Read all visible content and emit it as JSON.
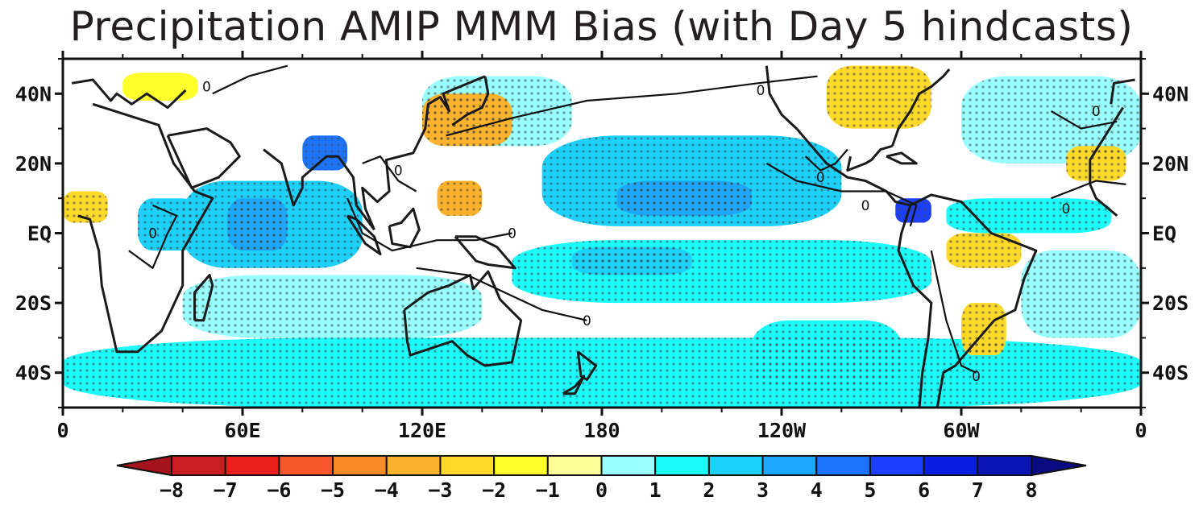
{
  "title": "Precipitation AMIP MMM Bias (with Day 5 hindcasts)",
  "map": {
    "projection": "cylindrical equidistant",
    "lon_range": [
      0,
      360
    ],
    "lat_range": [
      -50,
      50
    ],
    "x_ticks": [
      {
        "lon": 0,
        "label": "0"
      },
      {
        "lon": 60,
        "label": "60E"
      },
      {
        "lon": 120,
        "label": "120E"
      },
      {
        "lon": 180,
        "label": "180"
      },
      {
        "lon": 240,
        "label": "120W"
      },
      {
        "lon": 300,
        "label": "60W"
      },
      {
        "lon": 360,
        "label": "0"
      }
    ],
    "y_ticks": [
      {
        "lat": 40,
        "label": "40N"
      },
      {
        "lat": 20,
        "label": "20N"
      },
      {
        "lat": 0,
        "label": "EQ"
      },
      {
        "lat": -20,
        "label": "20S"
      },
      {
        "lat": -40,
        "label": "40S"
      }
    ],
    "contour_level": "0",
    "stippling": "significant bias",
    "bias_regions": [
      {
        "name": "central-pacific-itcz",
        "lon": [
          160,
          260
        ],
        "lat": [
          2,
          28
        ],
        "level": 3
      },
      {
        "name": "central-pacific-core",
        "lon": [
          185,
          230
        ],
        "lat": [
          5,
          15
        ],
        "level": 4
      },
      {
        "name": "south-pacific-band",
        "lon": [
          150,
          290
        ],
        "lat": [
          -20,
          -2
        ],
        "level": 2
      },
      {
        "name": "south-pacific-core",
        "lon": [
          170,
          210
        ],
        "lat": [
          -12,
          -4
        ],
        "level": 3
      },
      {
        "name": "indian-ocean-west",
        "lon": [
          40,
          100
        ],
        "lat": [
          -10,
          15
        ],
        "level": 3
      },
      {
        "name": "arabian-sea-core",
        "lon": [
          55,
          75
        ],
        "lat": [
          -5,
          10
        ],
        "level": 4
      },
      {
        "name": "southern-ocean-band",
        "lon": [
          0,
          360
        ],
        "lat": [
          -50,
          -30
        ],
        "level": 2
      },
      {
        "name": "south-indian-ocean",
        "lon": [
          40,
          140
        ],
        "lat": [
          -30,
          -12
        ],
        "level": 1
      },
      {
        "name": "south-atlantic",
        "lon": [
          320,
          360
        ],
        "lat": [
          -30,
          -5
        ],
        "level": 1
      },
      {
        "name": "tropical-atlantic",
        "lon": [
          295,
          350
        ],
        "lat": [
          0,
          10
        ],
        "level": 2
      },
      {
        "name": "north-atlantic",
        "lon": [
          300,
          360
        ],
        "lat": [
          20,
          45
        ],
        "level": 1
      },
      {
        "name": "north-pacific-west",
        "lon": [
          120,
          170
        ],
        "lat": [
          25,
          45
        ],
        "level": 1
      },
      {
        "name": "panama-core",
        "lon": [
          278,
          290
        ],
        "lat": [
          3,
          10
        ],
        "level": 6
      },
      {
        "name": "bay-of-bengal",
        "lon": [
          80,
          95
        ],
        "lat": [
          18,
          28
        ],
        "level": 5
      },
      {
        "name": "central-africa",
        "lon": [
          25,
          45
        ],
        "lat": [
          -5,
          10
        ],
        "level": 3
      },
      {
        "name": "south-pacific-east",
        "lon": [
          230,
          280
        ],
        "lat": [
          -45,
          -25
        ],
        "level": 2
      },
      {
        "name": "philippine-sea-dry",
        "lon": [
          125,
          140
        ],
        "lat": [
          5,
          15
        ],
        "level": -3
      },
      {
        "name": "japan-dry",
        "lon": [
          120,
          150
        ],
        "lat": [
          25,
          40
        ],
        "level": -3
      },
      {
        "name": "west-africa-dry",
        "lon": [
          0,
          15
        ],
        "lat": [
          3,
          12
        ],
        "level": -2
      },
      {
        "name": "amazon-dry",
        "lon": [
          295,
          320
        ],
        "lat": [
          -10,
          0
        ],
        "level": -2
      },
      {
        "name": "southeast-south-america-dry",
        "lon": [
          300,
          315
        ],
        "lat": [
          -35,
          -20
        ],
        "level": -2
      },
      {
        "name": "north-america-dry",
        "lon": [
          255,
          290
        ],
        "lat": [
          30,
          48
        ],
        "level": -2
      },
      {
        "name": "north-atlantic-dry",
        "lon": [
          335,
          355
        ],
        "lat": [
          15,
          25
        ],
        "level": -2
      },
      {
        "name": "mediterranean-dry",
        "lon": [
          20,
          45
        ],
        "lat": [
          38,
          46
        ],
        "level": -1
      }
    ]
  },
  "colorbar": {
    "labels": [
      "-8",
      "-7",
      "-6",
      "-5",
      "-4",
      "-3",
      "-2",
      "-1",
      "0",
      "1",
      "2",
      "3",
      "4",
      "5",
      "6",
      "7",
      "8"
    ],
    "colors": [
      "#a5141c",
      "#c81e22",
      "#e8201c",
      "#f7552a",
      "#fa8a25",
      "#fcb22b",
      "#ffd92a",
      "#ffff2c",
      "#ffff99",
      "#99ffff",
      "#1cfcfc",
      "#1cd2fc",
      "#1ca7fc",
      "#1c73fc",
      "#1c3ffc",
      "#0a1ee0",
      "#0b14b4",
      "#0a0a82"
    ]
  }
}
